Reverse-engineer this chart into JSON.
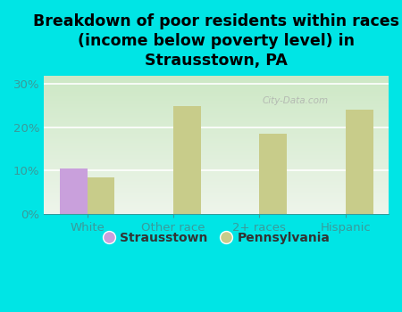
{
  "title": "Breakdown of poor residents within races\n(income below poverty level) in\nStrausstown, PA",
  "categories": [
    "White",
    "Other race",
    "2+ races",
    "Hispanic"
  ],
  "strausstown_values": [
    10.5,
    0,
    0,
    0
  ],
  "pennsylvania_values": [
    8.5,
    25.0,
    18.5,
    24.0
  ],
  "strausstown_color": "#c9a0dc",
  "pennsylvania_color": "#c8cc8a",
  "background_color": "#00e5e5",
  "plot_bg_color_topleft": "#d8ecd0",
  "plot_bg_color_bottomright": "#f0f5ee",
  "ylim": [
    0,
    32
  ],
  "yticks": [
    0,
    10,
    20,
    30
  ],
  "ytick_labels": [
    "0%",
    "10%",
    "20%",
    "30%"
  ],
  "watermark": "City-Data.com",
  "legend_strausstown": "Strausstown",
  "legend_pennsylvania": "Pennsylvania",
  "title_fontsize": 12.5,
  "tick_fontsize": 9.5,
  "legend_fontsize": 10,
  "tick_color": "#3a9a9a",
  "grid_color": "#c8d8c8"
}
